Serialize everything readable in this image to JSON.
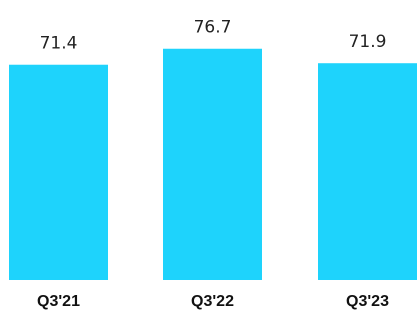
{
  "colors": {
    "bar": "#1ed3fc",
    "background": "#ffffff",
    "label": "#222222"
  },
  "chart_data": {
    "type": "bar",
    "categories": [
      "Q3'21",
      "Q3'22",
      "Q3'23"
    ],
    "values": [
      71.4,
      76.7,
      71.9
    ],
    "value_labels": [
      "71.4",
      "76.7",
      "71.9"
    ],
    "title": "",
    "xlabel": "",
    "ylabel": "",
    "ylim": [
      0,
      80
    ],
    "grid": false,
    "legend": "none"
  }
}
